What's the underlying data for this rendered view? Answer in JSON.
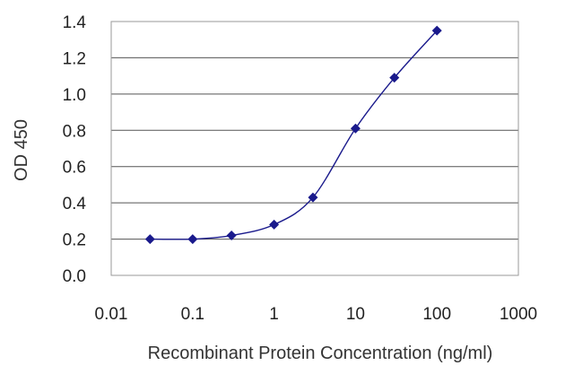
{
  "chart_data": {
    "type": "scatter",
    "title": "",
    "xlabel": "Recombinant Protein Concentration (ng/ml)",
    "ylabel": "OD 450",
    "x_scale": "log",
    "xlim": [
      0.01,
      1000
    ],
    "ylim": [
      0.0,
      1.4
    ],
    "x_ticks": [
      0.01,
      0.1,
      1,
      10,
      100,
      1000
    ],
    "x_tick_labels": [
      "0.01",
      "0.1",
      "1",
      "10",
      "100",
      "1000"
    ],
    "y_ticks": [
      0.0,
      0.2,
      0.4,
      0.6,
      0.8,
      1.0,
      1.2,
      1.4
    ],
    "y_tick_labels": [
      "0.0",
      "0.2",
      "0.4",
      "0.6",
      "0.8",
      "1.0",
      "1.2",
      "1.4"
    ],
    "grid": "horizontal",
    "legend": "none",
    "series": [
      {
        "x": [
          0.03,
          0.1,
          0.3,
          1,
          3,
          10,
          30,
          100
        ],
        "y": [
          0.2,
          0.2,
          0.22,
          0.28,
          0.43,
          0.81,
          1.09,
          1.35
        ],
        "color": "#1a1a8c",
        "line": "smooth",
        "marker": "diamond"
      }
    ]
  }
}
